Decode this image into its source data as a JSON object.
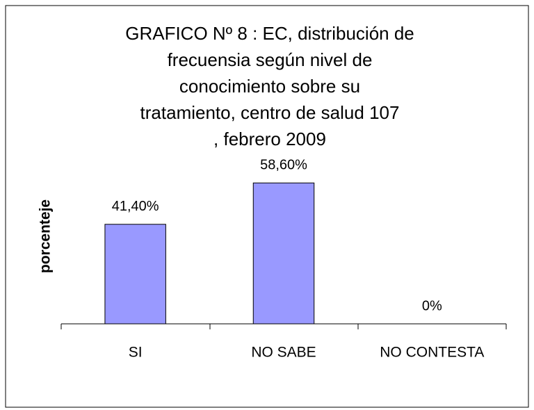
{
  "chart_data": {
    "type": "bar",
    "title": "GRAFICO Nº 8 : EC, distribución de\nfrecuensia  según nivel de\nconocimiento sobre su\ntratamiento, centro de salud 107\n, febrero 2009",
    "y_label": "porcenteje",
    "categories": [
      "SI",
      "NO SABE",
      "NO CONTESTA"
    ],
    "values": [
      41.4,
      58.6,
      0
    ],
    "value_labels": [
      "41,40%",
      "58,60%",
      "0%"
    ],
    "color": "#9999ff"
  }
}
